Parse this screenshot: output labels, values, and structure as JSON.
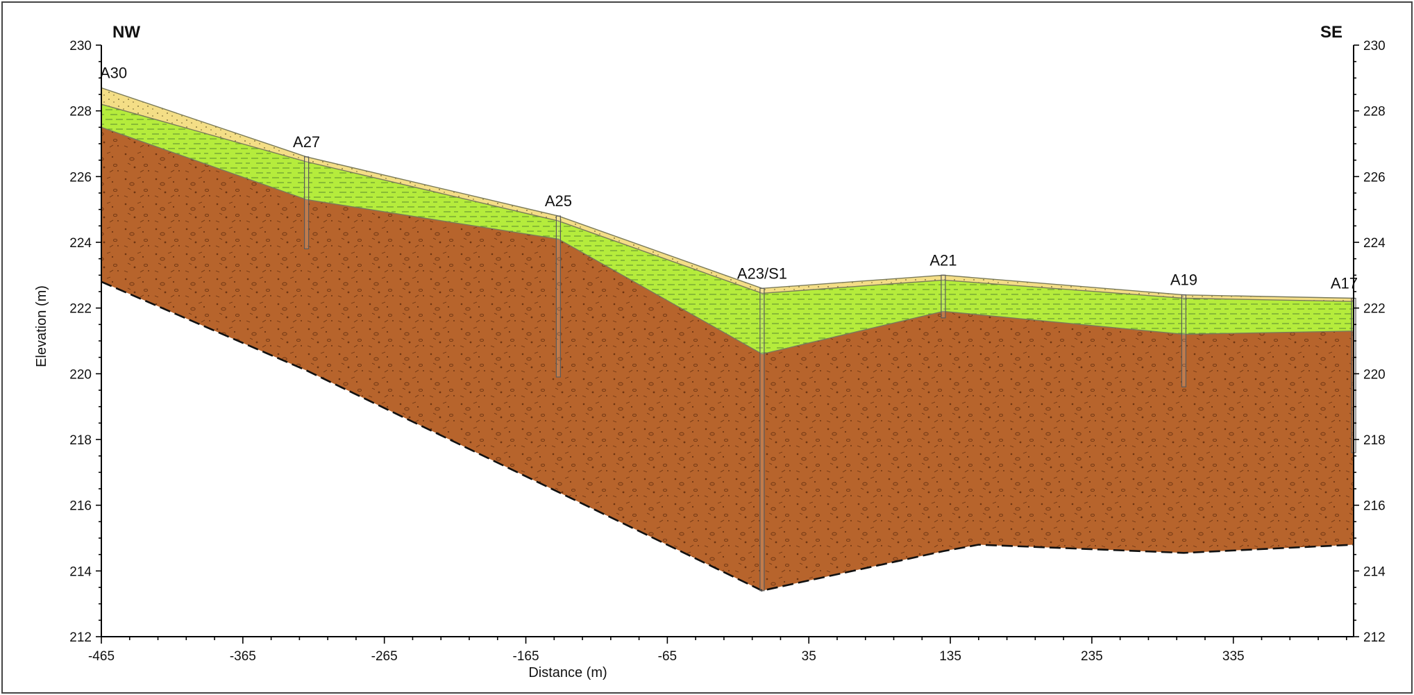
{
  "chart_data": {
    "type": "cross-section",
    "xlabel": "Distance (m)",
    "ylabel": "Elevation (m)",
    "xlim": [
      -465,
      420
    ],
    "ylim": [
      212,
      230
    ],
    "x_ticks": [
      -465,
      -365,
      -265,
      -165,
      -65,
      35,
      135,
      235,
      335
    ],
    "y_ticks": [
      212,
      214,
      216,
      218,
      220,
      222,
      224,
      226,
      228,
      230
    ],
    "orientation": {
      "left": "NW",
      "right": "SE"
    },
    "colors": {
      "topsoil": "#f4de86",
      "silt": "#b5ec3c",
      "till": "#b7642c",
      "boundary": "#7a7a5a",
      "base": "#111111"
    },
    "boreholes": [
      {
        "name": "A30",
        "x": -465,
        "top": 228.7,
        "bottom": 228.7
      },
      {
        "name": "A27",
        "x": -320,
        "top": 226.6,
        "bottom": 223.8
      },
      {
        "name": "A25",
        "x": -142,
        "top": 224.8,
        "bottom": 219.9
      },
      {
        "name": "A23/S1",
        "x": 2,
        "top": 222.6,
        "bottom": 213.4
      },
      {
        "name": "A21",
        "x": 130,
        "top": 223.0,
        "bottom": 221.7
      },
      {
        "name": "A19",
        "x": 300,
        "top": 222.4,
        "bottom": 219.6
      },
      {
        "name": "A17",
        "x": 420,
        "top": 222.3,
        "bottom": 217.6
      }
    ],
    "layers": {
      "ground_surface": [
        [
          -465,
          228.7
        ],
        [
          -320,
          226.6
        ],
        [
          -142,
          224.8
        ],
        [
          2,
          222.6
        ],
        [
          130,
          223.0
        ],
        [
          300,
          222.4
        ],
        [
          420,
          222.3
        ]
      ],
      "topsoil_base": [
        [
          -465,
          228.2
        ],
        [
          -320,
          226.45
        ],
        [
          -142,
          224.65
        ],
        [
          2,
          222.45
        ],
        [
          130,
          222.85
        ],
        [
          300,
          222.3
        ],
        [
          420,
          222.2
        ]
      ],
      "silt_base": [
        [
          -465,
          227.5
        ],
        [
          -320,
          225.3
        ],
        [
          -142,
          224.1
        ],
        [
          2,
          220.6
        ],
        [
          130,
          221.9
        ],
        [
          300,
          221.2
        ],
        [
          420,
          221.3
        ]
      ],
      "till_base": [
        [
          -465,
          222.8
        ],
        [
          -320,
          220.1
        ],
        [
          -142,
          216.4
        ],
        [
          2,
          213.4
        ],
        [
          130,
          214.6
        ],
        [
          155,
          214.8
        ],
        [
          300,
          214.55
        ],
        [
          420,
          214.8
        ]
      ]
    }
  }
}
